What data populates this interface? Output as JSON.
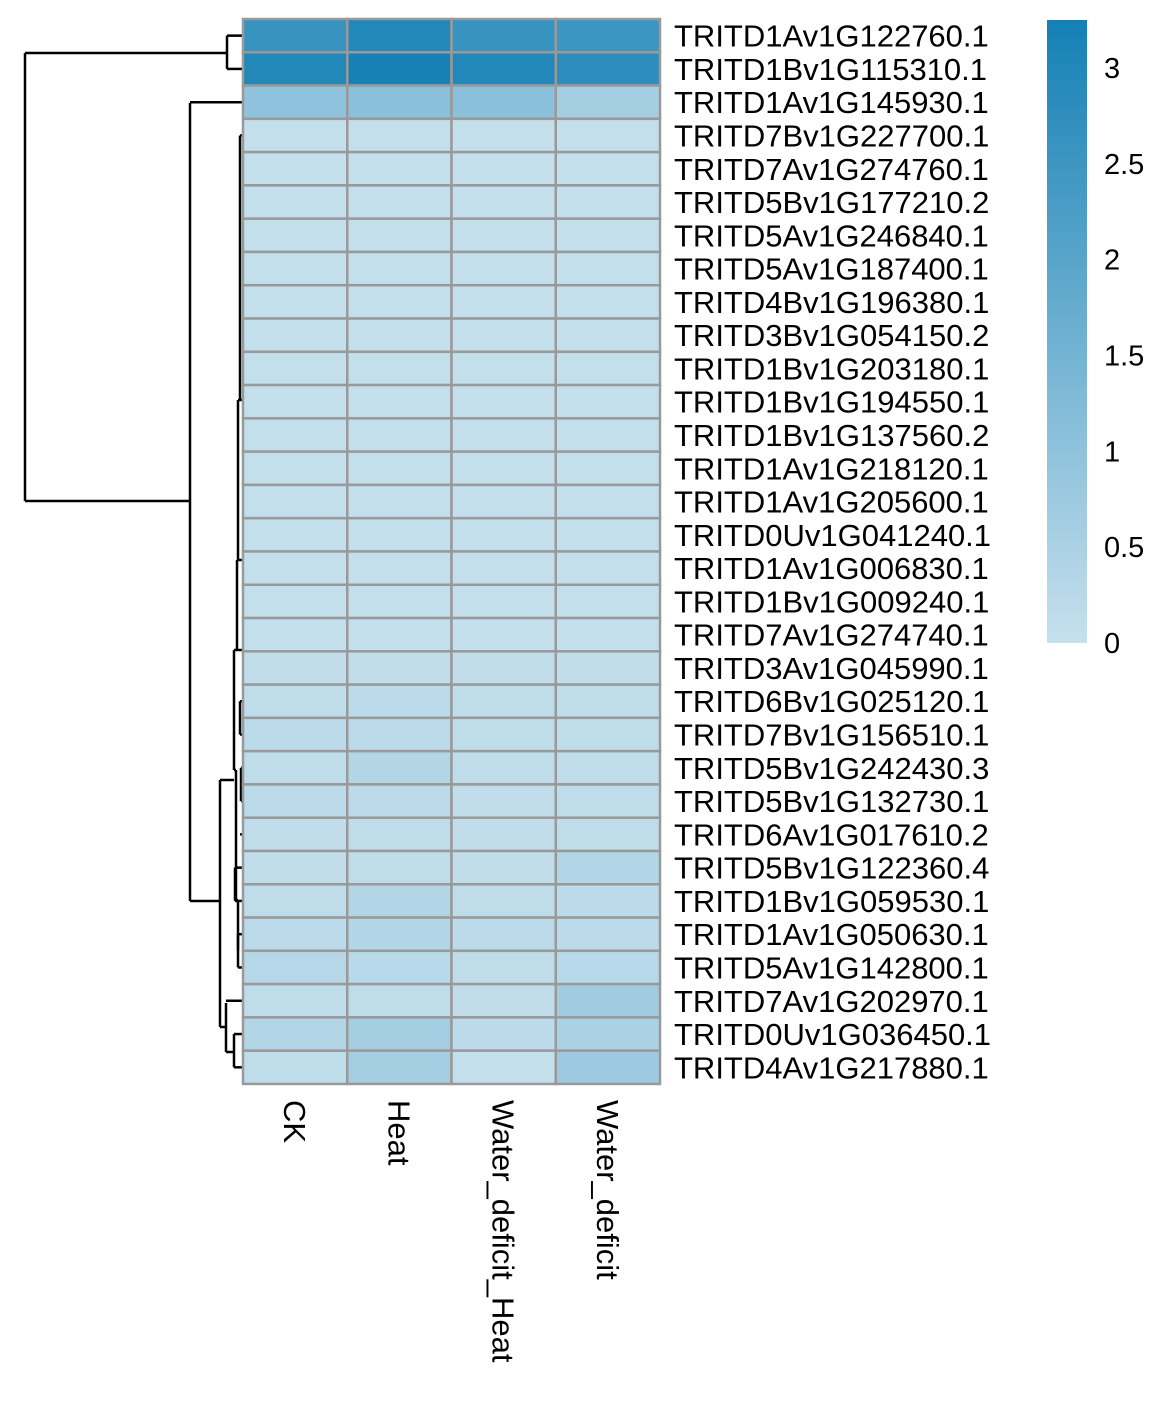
{
  "chart_data": {
    "type": "heatmap",
    "title": "",
    "columns": [
      "CK",
      "Heat",
      "Water_deficit_Heat",
      "Water_deficit"
    ],
    "rows": [
      "TRITD1Av1G122760.1",
      "TRITD1Bv1G115310.1",
      "TRITD1Av1G145930.1",
      "TRITD7Bv1G227700.1",
      "TRITD7Av1G274760.1",
      "TRITD5Bv1G177210.2",
      "TRITD5Av1G246840.1",
      "TRITD5Av1G187400.1",
      "TRITD4Bv1G196380.1",
      "TRITD3Bv1G054150.2",
      "TRITD1Bv1G203180.1",
      "TRITD1Bv1G194550.1",
      "TRITD1Bv1G137560.2",
      "TRITD1Av1G218120.1",
      "TRITD1Av1G205600.1",
      "TRITD0Uv1G041240.1",
      "TRITD1Av1G006830.1",
      "TRITD1Bv1G009240.1",
      "TRITD7Av1G274740.1",
      "TRITD3Av1G045990.1",
      "TRITD6Bv1G025120.1",
      "TRITD7Bv1G156510.1",
      "TRITD5Bv1G242430.3",
      "TRITD5Bv1G132730.1",
      "TRITD6Av1G017610.2",
      "TRITD5Bv1G122360.4",
      "TRITD1Bv1G059530.1",
      "TRITD1Av1G050630.1",
      "TRITD5Av1G142800.1",
      "TRITD7Av1G202970.1",
      "TRITD0Uv1G036450.1",
      "TRITD4Av1G217880.1"
    ],
    "values": [
      [
        2.6,
        3.0,
        2.6,
        2.5
      ],
      [
        3.0,
        3.2,
        3.0,
        2.8
      ],
      [
        1.0,
        1.1,
        1.1,
        0.6
      ],
      [
        0.05,
        0.05,
        0.05,
        0.05
      ],
      [
        0.05,
        0.05,
        0.05,
        0.05
      ],
      [
        0.05,
        0.05,
        0.05,
        0.05
      ],
      [
        0.05,
        0.05,
        0.05,
        0.05
      ],
      [
        0.05,
        0.05,
        0.05,
        0.05
      ],
      [
        0.05,
        0.05,
        0.05,
        0.05
      ],
      [
        0.05,
        0.05,
        0.05,
        0.05
      ],
      [
        0.05,
        0.05,
        0.05,
        0.05
      ],
      [
        0.05,
        0.05,
        0.05,
        0.05
      ],
      [
        0.05,
        0.05,
        0.05,
        0.05
      ],
      [
        0.05,
        0.05,
        0.05,
        0.05
      ],
      [
        0.05,
        0.05,
        0.05,
        0.05
      ],
      [
        0.05,
        0.05,
        0.05,
        0.05
      ],
      [
        0.05,
        0.05,
        0.05,
        0.05
      ],
      [
        0.05,
        0.05,
        0.05,
        0.05
      ],
      [
        0.05,
        0.05,
        0.05,
        0.05
      ],
      [
        0.1,
        0.1,
        0.1,
        0.1
      ],
      [
        0.15,
        0.2,
        0.15,
        0.15
      ],
      [
        0.2,
        0.2,
        0.15,
        0.15
      ],
      [
        0.15,
        0.35,
        0.15,
        0.15
      ],
      [
        0.2,
        0.2,
        0.1,
        0.15
      ],
      [
        0.1,
        0.15,
        0.1,
        0.15
      ],
      [
        0.1,
        0.15,
        0.1,
        0.35
      ],
      [
        0.15,
        0.35,
        0.15,
        0.2
      ],
      [
        0.2,
        0.35,
        0.2,
        0.2
      ],
      [
        0.3,
        0.25,
        0.15,
        0.25
      ],
      [
        0.15,
        0.15,
        0.1,
        0.7
      ],
      [
        0.35,
        0.6,
        0.2,
        0.5
      ],
      [
        0.15,
        0.6,
        0.05,
        0.75
      ]
    ],
    "color_scale": {
      "min": 0,
      "max": 3.25,
      "low_color": "#c6e0ed",
      "high_color": "#1480b5"
    },
    "legend": {
      "placement": "top-right",
      "ticks": [
        0,
        0.5,
        1,
        1.5,
        2,
        2.5,
        3
      ],
      "tick_labels": [
        "0",
        "0.5",
        "1",
        "1.5",
        "2",
        "2.5",
        "3"
      ]
    },
    "cell_border_color": "#999999",
    "dendrogram_color": "#000000"
  }
}
